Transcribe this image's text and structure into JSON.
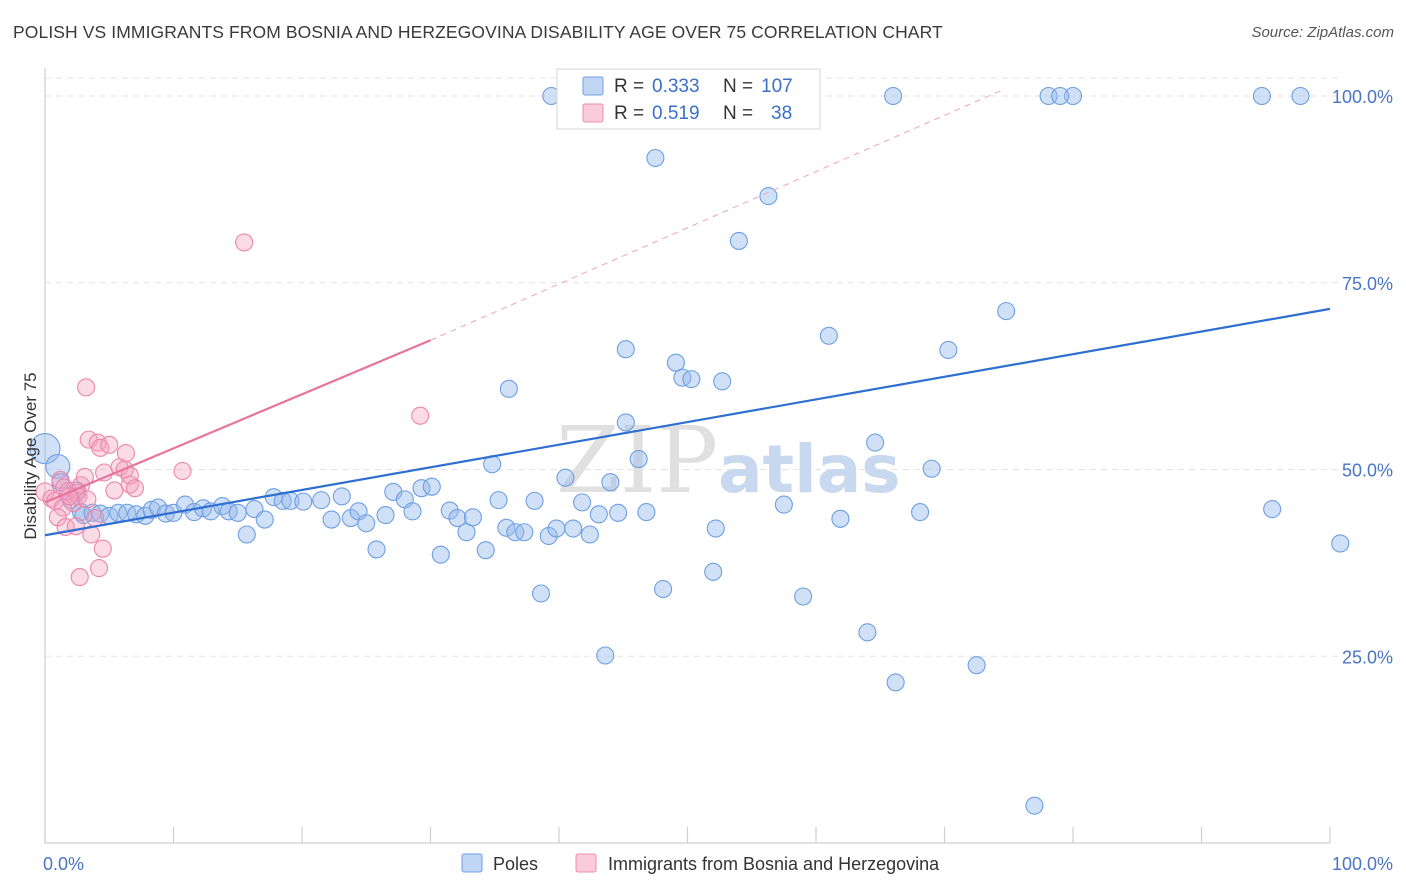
{
  "title": "POLISH VS IMMIGRANTS FROM BOSNIA AND HERZEGOVINA DISABILITY AGE OVER 75 CORRELATION CHART",
  "source": "Source: ZipAtlas.com",
  "watermark": {
    "part1": "ZIP",
    "part2": "atlas"
  },
  "legend": {
    "rows": [
      {
        "r_label": "R =",
        "r_value": "0.333",
        "n_label": "N =",
        "n_value": "107",
        "color": "#6e9fe3"
      },
      {
        "r_label": "R =",
        "r_value": "0.519",
        "n_label": "N =",
        "n_value": "38",
        "color": "#f08cb0"
      }
    ]
  },
  "chart_data": {
    "type": "scatter",
    "title": "POLISH VS IMMIGRANTS FROM BOSNIA AND HERZEGOVINA DISABILITY AGE OVER 75 CORRELATION CHART",
    "xlabel": "",
    "ylabel": "Disability Age Over 75",
    "xlim": [
      0,
      100
    ],
    "ylim": [
      0,
      102
    ],
    "x_tick_labels": [
      "0.0%",
      "100.0%"
    ],
    "y_ticks": [
      25,
      50,
      75,
      100
    ],
    "y_tick_labels": [
      "25.0%",
      "50.0%",
      "75.0%",
      "100.0%"
    ],
    "grid": true,
    "legend_position": "top-center",
    "series": [
      {
        "name": "Poles",
        "color": "#6e9fe3",
        "trend": {
          "x0": 0,
          "y0": 41.2,
          "x1": 100,
          "y1": 71.5
        },
        "points": [
          [
            0,
            52.8
          ],
          [
            1,
            50.4
          ],
          [
            1.2,
            48.3
          ],
          [
            2.5,
            47.2
          ],
          [
            2,
            45.9
          ],
          [
            2.8,
            44.3
          ],
          [
            3,
            43.9
          ],
          [
            3.7,
            44.2
          ],
          [
            4.3,
            44.1
          ],
          [
            5,
            43.8
          ],
          [
            5.7,
            44.2
          ],
          [
            6.4,
            44.2
          ],
          [
            7.1,
            44.0
          ],
          [
            7.8,
            43.8
          ],
          [
            8.3,
            44.6
          ],
          [
            8.8,
            44.9
          ],
          [
            9.4,
            44.1
          ],
          [
            10,
            44.2
          ],
          [
            10.9,
            45.3
          ],
          [
            11.6,
            44.3
          ],
          [
            12.3,
            44.8
          ],
          [
            12.9,
            44.4
          ],
          [
            13.8,
            45.1
          ],
          [
            14.3,
            44.4
          ],
          [
            15,
            44.2
          ],
          [
            15.7,
            41.3
          ],
          [
            16.3,
            44.7
          ],
          [
            17.1,
            43.3
          ],
          [
            17.8,
            46.3
          ],
          [
            18.5,
            45.8
          ],
          [
            19.1,
            45.8
          ],
          [
            20.1,
            45.7
          ],
          [
            21.5,
            45.9
          ],
          [
            22.3,
            43.3
          ],
          [
            23.1,
            46.4
          ],
          [
            23.8,
            43.5
          ],
          [
            24.4,
            44.4
          ],
          [
            25,
            42.8
          ],
          [
            25.8,
            39.3
          ],
          [
            26.5,
            43.9
          ],
          [
            27.1,
            47.0
          ],
          [
            28,
            46.0
          ],
          [
            28.6,
            44.4
          ],
          [
            29.3,
            47.5
          ],
          [
            30.1,
            47.7
          ],
          [
            30.8,
            38.6
          ],
          [
            31.5,
            44.5
          ],
          [
            32.1,
            43.5
          ],
          [
            32.8,
            41.6
          ],
          [
            33.3,
            43.6
          ],
          [
            34.3,
            39.2
          ],
          [
            34.8,
            50.7
          ],
          [
            35.3,
            45.9
          ],
          [
            35.9,
            42.2
          ],
          [
            36.6,
            41.6
          ],
          [
            36.1,
            60.8
          ],
          [
            37.3,
            41.6
          ],
          [
            38.1,
            45.8
          ],
          [
            38.6,
            33.4
          ],
          [
            39.2,
            41.1
          ],
          [
            39.8,
            42.1
          ],
          [
            40.5,
            48.9
          ],
          [
            41.1,
            42.1
          ],
          [
            41.8,
            45.6
          ],
          [
            42.4,
            41.3
          ],
          [
            43.1,
            44.0
          ],
          [
            43.6,
            25.1
          ],
          [
            44,
            48.3
          ],
          [
            44.6,
            44.2
          ],
          [
            45.2,
            56.3
          ],
          [
            45.2,
            66.1
          ],
          [
            46.2,
            51.4
          ],
          [
            46.8,
            44.3
          ],
          [
            47.5,
            91.7
          ],
          [
            48.1,
            34.0
          ],
          [
            49.1,
            64.3
          ],
          [
            49.6,
            62.3
          ],
          [
            50.3,
            62.1
          ],
          [
            52.2,
            42.1
          ],
          [
            52.0,
            36.3
          ],
          [
            52.7,
            61.8
          ],
          [
            54.0,
            80.6
          ],
          [
            56.3,
            86.6
          ],
          [
            57.5,
            45.3
          ],
          [
            59,
            33.0
          ],
          [
            61,
            67.9
          ],
          [
            61.9,
            43.4
          ],
          [
            64,
            28.2
          ],
          [
            64.6,
            53.6
          ],
          [
            66.2,
            21.5
          ],
          [
            68.1,
            44.3
          ],
          [
            69,
            50.1
          ],
          [
            70.3,
            66.0
          ],
          [
            72.5,
            23.8
          ],
          [
            74.8,
            71.2
          ],
          [
            77,
            5.0
          ],
          [
            78.1,
            100.0
          ],
          [
            80,
            100.0
          ],
          [
            66,
            100.0
          ],
          [
            79,
            100.0
          ],
          [
            94.7,
            100.0
          ],
          [
            97.7,
            100.0
          ],
          [
            95.5,
            44.7
          ],
          [
            100.8,
            40.1
          ],
          [
            39.4,
            100.0
          ],
          [
            41.2,
            100.0
          ],
          [
            47.0,
            100.0
          ]
        ]
      },
      {
        "name": "Immigrants from Bosnia and Herzegovina",
        "color": "#f08cb0",
        "trend": {
          "x0": 0,
          "y0": 45.6,
          "x1": 30,
          "y1": 67.3
        },
        "trend_extended": {
          "x0": 30,
          "y0": 67.3,
          "x1": 74.5,
          "y1": 100.8
        },
        "points": [
          [
            0,
            47.0
          ],
          [
            0.5,
            46.1
          ],
          [
            0.8,
            45.8
          ],
          [
            1.2,
            48.6
          ],
          [
            1.5,
            47.6
          ],
          [
            1.8,
            47.1
          ],
          [
            2.2,
            45.5
          ],
          [
            2.5,
            46.9
          ],
          [
            2.8,
            47.9
          ],
          [
            3.1,
            49.0
          ],
          [
            1.4,
            44.9
          ],
          [
            2.6,
            46.4
          ],
          [
            1.0,
            43.6
          ],
          [
            1.6,
            42.3
          ],
          [
            3.3,
            46.0
          ],
          [
            3.6,
            41.3
          ],
          [
            3.9,
            43.5
          ],
          [
            2.4,
            42.4
          ],
          [
            2.7,
            35.6
          ],
          [
            3.2,
            61.0
          ],
          [
            3.4,
            54.0
          ],
          [
            4.1,
            53.6
          ],
          [
            4.3,
            52.9
          ],
          [
            4.6,
            49.6
          ],
          [
            5.0,
            53.3
          ],
          [
            5.4,
            47.2
          ],
          [
            5.8,
            50.3
          ],
          [
            6.2,
            50.0
          ],
          [
            6.6,
            48.0
          ],
          [
            6.3,
            52.2
          ],
          [
            6.6,
            49.2
          ],
          [
            7.0,
            47.5
          ],
          [
            10.7,
            49.8
          ],
          [
            15.5,
            80.4
          ],
          [
            29.2,
            57.2
          ],
          [
            4.2,
            36.8
          ],
          [
            4.5,
            39.4
          ],
          [
            1.9,
            46.4
          ]
        ]
      }
    ]
  },
  "bottom_legend": [
    {
      "label": "Poles",
      "color": "#6e9fe3"
    },
    {
      "label": "Immigrants from Bosnia and Herzegovina",
      "color": "#f08cb0"
    }
  ]
}
